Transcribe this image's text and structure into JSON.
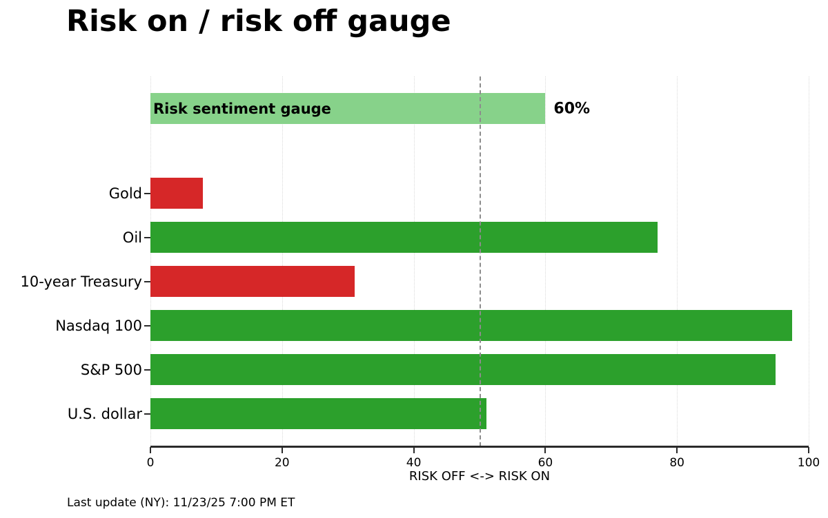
{
  "title": "Risk on / risk off gauge",
  "footer": {
    "last_update": "Last update (NY): 11/23/25 7:00 PM ET"
  },
  "chart_data": {
    "type": "bar",
    "orientation": "horizontal",
    "title": "Risk on / risk off gauge",
    "xlabel": "RISK OFF <-> RISK ON",
    "xlim": [
      0,
      100
    ],
    "xticks": [
      0,
      20,
      40,
      60,
      80,
      100
    ],
    "grid": "vertical dotted gridlines at each x tick",
    "legend": "none",
    "threshold_line": {
      "x": 50,
      "style": "dashed",
      "color": "#8c8c8c"
    },
    "gauge": {
      "label": "Risk sentiment gauge",
      "value": 60,
      "value_label": "60%",
      "color": "#87d28a"
    },
    "categories": [
      "Gold",
      "Oil",
      "10-year Treasury",
      "Nasdaq 100",
      "S&P 500",
      "U.S. dollar"
    ],
    "values": [
      8,
      77,
      31,
      97.5,
      95,
      51
    ],
    "colors": [
      "#d62728",
      "#2ca02c",
      "#d62728",
      "#2ca02c",
      "#2ca02c",
      "#2ca02c"
    ],
    "risk_on_color": "#2ca02c",
    "risk_off_color": "#d62728"
  }
}
